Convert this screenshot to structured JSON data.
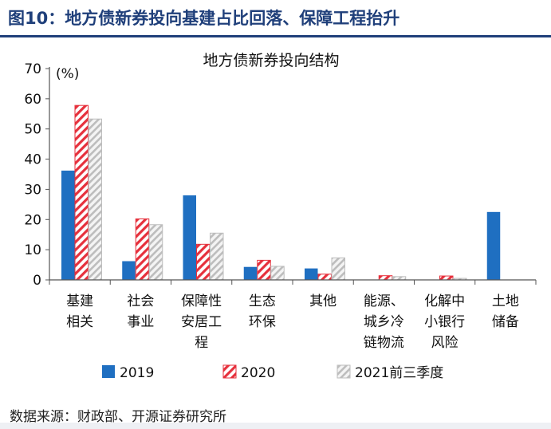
{
  "figure": {
    "title": "图10：地方债新券投向基建占比回落、保障工程抬升",
    "source": "数据来源：财政部、开源证券研究所"
  },
  "chart_data": {
    "type": "bar",
    "title": "地方债新券投向结构",
    "unit_label": "(%)",
    "ylim": [
      0,
      70
    ],
    "yticks": [
      0,
      10,
      20,
      30,
      40,
      50,
      60,
      70
    ],
    "categories": [
      [
        "基建",
        "相关"
      ],
      [
        "社会",
        "事业"
      ],
      [
        "保障性",
        "安居工",
        "程"
      ],
      [
        "生态",
        "环保"
      ],
      [
        "其他"
      ],
      [
        "能源、",
        "城乡冷",
        "链物流"
      ],
      [
        "化解中",
        "小银行",
        "风险"
      ],
      [
        "土地",
        "储备"
      ]
    ],
    "series": [
      {
        "name": "2019",
        "values": [
          36.2,
          6.2,
          28.0,
          4.3,
          3.8,
          0,
          0,
          22.5
        ]
      },
      {
        "name": "2020",
        "values": [
          57.8,
          20.2,
          11.8,
          6.5,
          1.9,
          1.4,
          1.3,
          0
        ]
      },
      {
        "name": "2021前三季度",
        "values": [
          53.3,
          18.3,
          15.5,
          4.5,
          7.3,
          1.1,
          0.5,
          0
        ]
      }
    ],
    "colors": {
      "2019": "#1f6fc1",
      "2020": "#e6303c",
      "2021前三季度": "#c8c8c8"
    },
    "legend_position": "bottom",
    "grid": false
  }
}
